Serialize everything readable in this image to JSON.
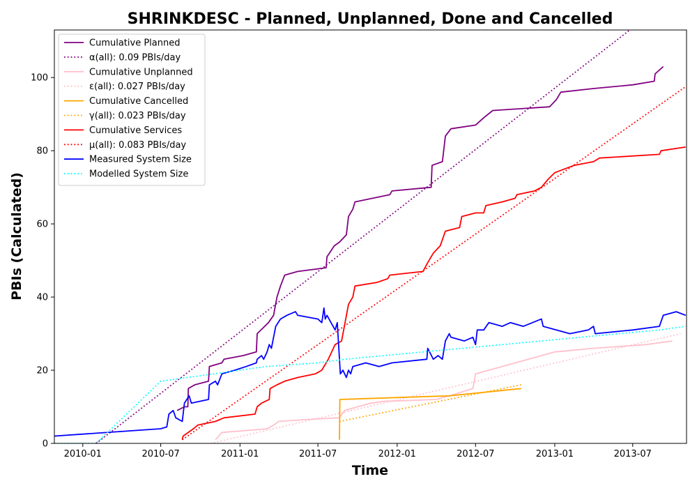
{
  "chart_data": {
    "type": "line",
    "title": "SHRINKDESC - Planned, Unplanned, Done  and Cancelled",
    "xlabel": "Time",
    "ylabel": "PBIs (Calculated)",
    "xlim": [
      "2009-10-27",
      "2013-11-03"
    ],
    "ylim": [
      0,
      113
    ],
    "x_ticks": [
      "2010-01-01",
      "2010-07-01",
      "2011-01-01",
      "2011-07-01",
      "2012-01-01",
      "2012-07-01",
      "2013-01-01",
      "2013-07-01"
    ],
    "x_tick_labels": [
      "2010-01",
      "2010-07",
      "2011-01",
      "2011-07",
      "2012-01",
      "2012-07",
      "2013-01",
      "2013-07"
    ],
    "y_ticks": [
      0,
      20,
      40,
      60,
      80,
      100
    ],
    "grid": false,
    "legend_position": "top-left",
    "series": [
      {
        "name": "Cumulative Planned",
        "color": "#800080",
        "style": "solid",
        "points": [
          [
            "2010-08-08",
            9
          ],
          [
            "2010-08-25",
            10
          ],
          [
            "2010-09-02",
            10
          ],
          [
            "2010-09-03",
            15
          ],
          [
            "2010-09-18",
            16
          ],
          [
            "2010-10-20",
            17
          ],
          [
            "2010-10-22",
            21
          ],
          [
            "2010-11-20",
            22
          ],
          [
            "2010-11-25",
            23
          ],
          [
            "2011-01-08",
            24
          ],
          [
            "2011-02-08",
            25
          ],
          [
            "2011-02-10",
            30
          ],
          [
            "2011-03-08",
            33
          ],
          [
            "2011-03-20",
            35
          ],
          [
            "2011-03-28",
            40
          ],
          [
            "2011-04-05",
            43
          ],
          [
            "2011-04-15",
            46
          ],
          [
            "2011-05-15",
            47
          ],
          [
            "2011-07-20",
            48
          ],
          [
            "2011-07-22",
            51
          ],
          [
            "2011-08-08",
            54
          ],
          [
            "2011-08-20",
            55
          ],
          [
            "2011-09-05",
            57
          ],
          [
            "2011-09-10",
            62
          ],
          [
            "2011-09-20",
            64
          ],
          [
            "2011-09-25",
            66
          ],
          [
            "2011-11-05",
            67
          ],
          [
            "2011-12-15",
            68
          ],
          [
            "2011-12-20",
            69
          ],
          [
            "2012-03-20",
            70
          ],
          [
            "2012-03-22",
            76
          ],
          [
            "2012-04-15",
            77
          ],
          [
            "2012-04-22",
            84
          ],
          [
            "2012-05-05",
            86
          ],
          [
            "2012-07-01",
            87
          ],
          [
            "2012-07-20",
            89
          ],
          [
            "2012-08-10",
            91
          ],
          [
            "2012-12-20",
            92
          ],
          [
            "2013-01-05",
            94
          ],
          [
            "2013-01-15",
            96
          ],
          [
            "2013-04-01",
            97
          ],
          [
            "2013-07-01",
            98
          ],
          [
            "2013-08-20",
            99
          ],
          [
            "2013-08-22",
            101
          ],
          [
            "2013-09-10",
            103
          ]
        ]
      },
      {
        "name": "α(all): 0.09 PBIs/day",
        "color": "#800080",
        "style": "dotted",
        "points": [
          [
            "2010-02-01",
            0
          ],
          [
            "2013-11-03",
            125
          ]
        ]
      },
      {
        "name": "Cumulative Unplanned",
        "color": "#ffc0cb",
        "style": "solid",
        "points": [
          [
            "2010-11-05",
            1
          ],
          [
            "2010-11-20",
            3
          ],
          [
            "2011-01-15",
            3.5
          ],
          [
            "2011-03-05",
            4
          ],
          [
            "2011-03-20",
            5
          ],
          [
            "2011-04-01",
            6
          ],
          [
            "2011-06-01",
            6.5
          ],
          [
            "2011-08-20",
            7
          ],
          [
            "2011-09-01",
            9
          ],
          [
            "2011-10-01",
            10
          ],
          [
            "2011-11-01",
            11
          ],
          [
            "2011-12-01",
            11.5
          ],
          [
            "2012-04-01",
            12
          ],
          [
            "2012-05-01",
            13
          ],
          [
            "2012-06-25",
            15
          ],
          [
            "2012-07-01",
            19
          ],
          [
            "2012-08-01",
            20
          ],
          [
            "2012-09-01",
            21
          ],
          [
            "2012-10-01",
            22
          ],
          [
            "2012-11-01",
            23
          ],
          [
            "2012-12-01",
            24
          ],
          [
            "2013-01-01",
            25
          ],
          [
            "2013-04-01",
            26
          ],
          [
            "2013-08-01",
            27
          ],
          [
            "2013-10-01",
            28
          ]
        ]
      },
      {
        "name": "ε(all): 0.027 PBIs/day",
        "color": "#ffc0cb",
        "style": "dotted",
        "points": [
          [
            "2010-10-25",
            0
          ],
          [
            "2013-10-20",
            30
          ]
        ]
      },
      {
        "name": "Cumulative Cancelled",
        "color": "#ffa500",
        "style": "solid",
        "points": [
          [
            "2011-08-20",
            1
          ],
          [
            "2011-08-21",
            12
          ],
          [
            "2012-05-01",
            13
          ],
          [
            "2012-10-15",
            15
          ]
        ]
      },
      {
        "name": "γ(all): 0.023 PBIs/day",
        "color": "#ffa500",
        "style": "dotted",
        "points": [
          [
            "2011-08-20",
            6
          ],
          [
            "2012-10-15",
            16
          ]
        ]
      },
      {
        "name": "Cumulative Services",
        "color": "#ff0000",
        "style": "solid",
        "points": [
          [
            "2010-08-20",
            1
          ],
          [
            "2010-08-22",
            2
          ],
          [
            "2010-09-15",
            4
          ],
          [
            "2010-09-25",
            5
          ],
          [
            "2010-11-05",
            6
          ],
          [
            "2010-11-25",
            7
          ],
          [
            "2011-02-05",
            8
          ],
          [
            "2011-02-10",
            10
          ],
          [
            "2011-02-20",
            11
          ],
          [
            "2011-03-10",
            12
          ],
          [
            "2011-03-12",
            15
          ],
          [
            "2011-03-28",
            16
          ],
          [
            "2011-04-15",
            17
          ],
          [
            "2011-05-15",
            18
          ],
          [
            "2011-06-25",
            19
          ],
          [
            "2011-07-10",
            20
          ],
          [
            "2011-07-25",
            23
          ],
          [
            "2011-08-10",
            27
          ],
          [
            "2011-08-25",
            28
          ],
          [
            "2011-09-10",
            38
          ],
          [
            "2011-09-20",
            40
          ],
          [
            "2011-09-25",
            43
          ],
          [
            "2011-11-15",
            44
          ],
          [
            "2011-12-10",
            45
          ],
          [
            "2011-12-15",
            46
          ],
          [
            "2012-03-01",
            47
          ],
          [
            "2012-03-10",
            49
          ],
          [
            "2012-03-25",
            52
          ],
          [
            "2012-04-10",
            54
          ],
          [
            "2012-04-22",
            58
          ],
          [
            "2012-05-25",
            59
          ],
          [
            "2012-05-30",
            62
          ],
          [
            "2012-07-01",
            63
          ],
          [
            "2012-07-20",
            63
          ],
          [
            "2012-07-25",
            65
          ],
          [
            "2012-09-01",
            66
          ],
          [
            "2012-10-01",
            67
          ],
          [
            "2012-10-05",
            68
          ],
          [
            "2012-11-15",
            69
          ],
          [
            "2012-12-01",
            70
          ],
          [
            "2012-12-15",
            72
          ],
          [
            "2013-01-01",
            74
          ],
          [
            "2013-02-15",
            76
          ],
          [
            "2013-04-01",
            77
          ],
          [
            "2013-04-15",
            78
          ],
          [
            "2013-09-01",
            79
          ],
          [
            "2013-09-05",
            80
          ],
          [
            "2013-11-01",
            81
          ]
        ]
      },
      {
        "name": "μ(all): 0.083 PBIs/day",
        "color": "#ff0000",
        "style": "dotted",
        "points": [
          [
            "2010-08-20",
            1
          ],
          [
            "2013-11-01",
            97.5
          ]
        ]
      },
      {
        "name": "Measured System Size",
        "color": "#0000ff",
        "style": "solid",
        "points": [
          [
            "2009-10-27",
            2
          ],
          [
            "2010-07-01",
            4
          ],
          [
            "2010-07-15",
            4.5
          ],
          [
            "2010-07-20",
            8
          ],
          [
            "2010-07-30",
            9
          ],
          [
            "2010-08-05",
            7
          ],
          [
            "2010-08-20",
            6
          ],
          [
            "2010-08-25",
            11
          ],
          [
            "2010-09-05",
            13
          ],
          [
            "2010-09-10",
            11
          ],
          [
            "2010-10-20",
            12
          ],
          [
            "2010-10-22",
            16
          ],
          [
            "2010-11-05",
            17
          ],
          [
            "2010-11-10",
            16
          ],
          [
            "2010-11-20",
            19
          ],
          [
            "2010-12-20",
            20
          ],
          [
            "2011-01-15",
            21
          ],
          [
            "2011-02-08",
            22
          ],
          [
            "2011-02-10",
            23
          ],
          [
            "2011-02-20",
            24
          ],
          [
            "2011-02-25",
            23
          ],
          [
            "2011-03-05",
            25
          ],
          [
            "2011-03-10",
            27
          ],
          [
            "2011-03-15",
            26
          ],
          [
            "2011-03-20",
            29
          ],
          [
            "2011-03-25",
            32
          ],
          [
            "2011-04-05",
            34
          ],
          [
            "2011-04-20",
            35
          ],
          [
            "2011-05-10",
            36
          ],
          [
            "2011-05-15",
            35
          ],
          [
            "2011-07-01",
            34
          ],
          [
            "2011-07-10",
            33
          ],
          [
            "2011-07-15",
            37
          ],
          [
            "2011-07-18",
            34
          ],
          [
            "2011-07-22",
            35
          ],
          [
            "2011-08-10",
            31
          ],
          [
            "2011-08-15",
            33
          ],
          [
            "2011-08-22",
            19
          ],
          [
            "2011-08-28",
            20
          ],
          [
            "2011-09-05",
            18
          ],
          [
            "2011-09-10",
            20
          ],
          [
            "2011-09-15",
            19
          ],
          [
            "2011-09-20",
            21
          ],
          [
            "2011-10-20",
            22
          ],
          [
            "2011-11-20",
            21
          ],
          [
            "2011-12-20",
            22
          ],
          [
            "2012-03-10",
            23
          ],
          [
            "2012-03-12",
            26
          ],
          [
            "2012-03-25",
            23
          ],
          [
            "2012-04-05",
            24
          ],
          [
            "2012-04-15",
            23
          ],
          [
            "2012-04-22",
            28
          ],
          [
            "2012-05-01",
            30
          ],
          [
            "2012-05-05",
            29
          ],
          [
            "2012-06-05",
            28
          ],
          [
            "2012-06-25",
            29
          ],
          [
            "2012-07-01",
            27
          ],
          [
            "2012-07-05",
            31
          ],
          [
            "2012-07-20",
            31
          ],
          [
            "2012-08-01",
            33
          ],
          [
            "2012-09-01",
            32
          ],
          [
            "2012-09-20",
            33
          ],
          [
            "2012-10-20",
            32
          ],
          [
            "2012-12-01",
            34
          ],
          [
            "2012-12-05",
            32
          ],
          [
            "2013-02-05",
            30
          ],
          [
            "2013-03-20",
            31
          ],
          [
            "2013-04-01",
            32
          ],
          [
            "2013-04-05",
            30
          ],
          [
            "2013-07-01",
            31
          ],
          [
            "2013-09-01",
            32
          ],
          [
            "2013-09-10",
            35
          ],
          [
            "2013-10-10",
            36
          ],
          [
            "2013-11-01",
            35
          ]
        ]
      },
      {
        "name": "Modelled System Size",
        "color": "#00ffff",
        "style": "dotted",
        "points": [
          [
            "2009-10-27",
            0
          ],
          [
            "2010-02-01",
            0
          ],
          [
            "2010-07-01",
            17
          ],
          [
            "2010-09-01",
            18
          ],
          [
            "2010-11-01",
            19
          ],
          [
            "2011-01-01",
            20
          ],
          [
            "2011-03-01",
            21
          ],
          [
            "2011-05-01",
            21.5
          ],
          [
            "2011-07-01",
            22
          ],
          [
            "2011-09-01",
            23
          ],
          [
            "2011-12-01",
            24
          ],
          [
            "2012-03-01",
            25
          ],
          [
            "2012-06-01",
            26
          ],
          [
            "2012-09-01",
            27
          ],
          [
            "2012-12-01",
            28
          ],
          [
            "2013-03-01",
            29
          ],
          [
            "2013-06-01",
            30
          ],
          [
            "2013-09-01",
            31
          ],
          [
            "2013-11-01",
            32
          ]
        ]
      }
    ]
  }
}
